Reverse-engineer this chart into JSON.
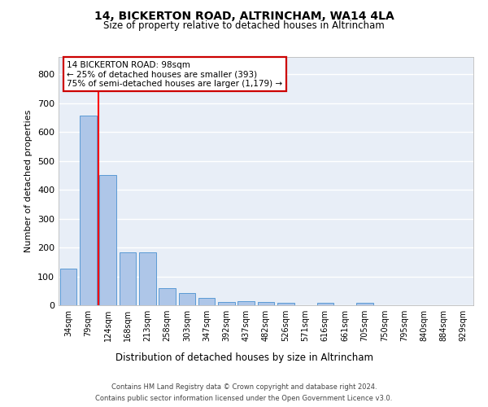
{
  "title": "14, BICKERTON ROAD, ALTRINCHAM, WA14 4LA",
  "subtitle": "Size of property relative to detached houses in Altrincham",
  "xlabel": "Distribution of detached houses by size in Altrincham",
  "ylabel": "Number of detached properties",
  "bar_labels": [
    "34sqm",
    "79sqm",
    "124sqm",
    "168sqm",
    "213sqm",
    "258sqm",
    "303sqm",
    "347sqm",
    "392sqm",
    "437sqm",
    "482sqm",
    "526sqm",
    "571sqm",
    "616sqm",
    "661sqm",
    "705sqm",
    "750sqm",
    "795sqm",
    "840sqm",
    "884sqm",
    "929sqm"
  ],
  "bar_values": [
    128,
    658,
    452,
    184,
    184,
    60,
    42,
    25,
    12,
    13,
    11,
    9,
    0,
    8,
    0,
    9,
    0,
    0,
    0,
    0,
    0
  ],
  "bar_color": "#aec6e8",
  "bar_edge_color": "#5b9bd5",
  "background_color": "#e8eef7",
  "grid_color": "#ffffff",
  "annotation_box_text": "14 BICKERTON ROAD: 98sqm\n← 25% of detached houses are smaller (393)\n75% of semi-detached houses are larger (1,179) →",
  "annotation_box_color": "#cc0000",
  "red_line_x": 1.5,
  "ylim": [
    0,
    860
  ],
  "yticks": [
    0,
    100,
    200,
    300,
    400,
    500,
    600,
    700,
    800
  ],
  "footer_line1": "Contains HM Land Registry data © Crown copyright and database right 2024.",
  "footer_line2": "Contains public sector information licensed under the Open Government Licence v3.0."
}
